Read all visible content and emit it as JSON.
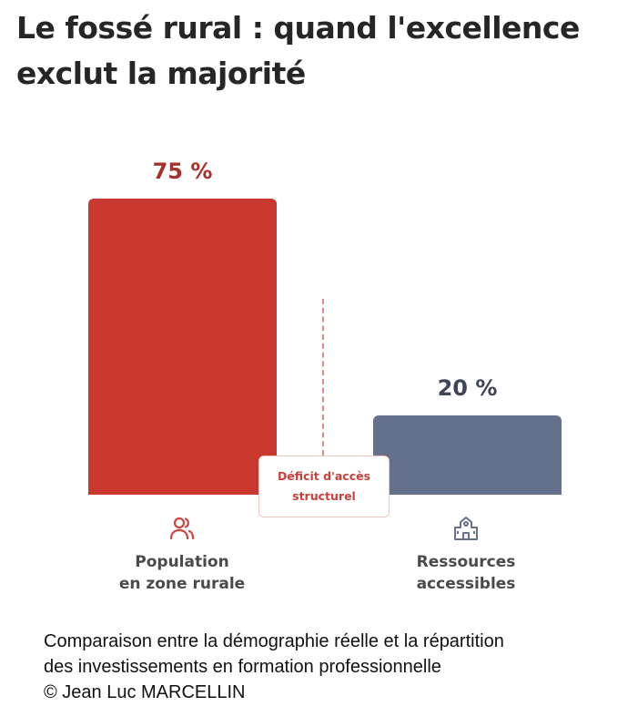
{
  "title_line1": "Le fossé rural : quand l'excellence",
  "title_line2": "exclut la majorité",
  "chart_data": {
    "type": "bar",
    "categories": [
      "Population en zone rurale",
      "Ressources accessibles"
    ],
    "category_lines": [
      [
        "Population",
        "en zone rurale"
      ],
      [
        "Ressources",
        "accessibles"
      ]
    ],
    "values": [
      75,
      20
    ],
    "value_labels": [
      "75 %",
      "20 %"
    ],
    "colors": [
      "#c9382f",
      "#65718a"
    ],
    "label_colors": [
      "#a8302b",
      "#3d4556"
    ],
    "ylim": [
      0,
      75
    ],
    "annotation": [
      "Déficit d'accès",
      "structurel"
    ],
    "icons": [
      "users-icon",
      "school-building-icon"
    ]
  },
  "caption": [
    "Comparaison entre la démographie réelle et la répartition",
    "des investissements en formation professionnelle",
    "© Jean Luc MARCELLIN"
  ]
}
